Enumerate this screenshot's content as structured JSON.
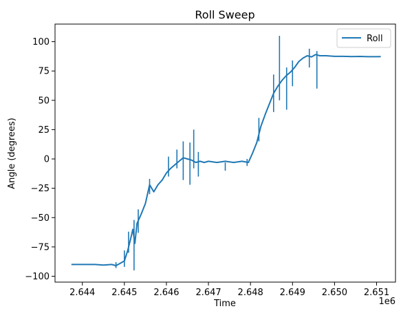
{
  "chart_data": {
    "type": "line",
    "title": "Roll Sweep",
    "xlabel": "Time",
    "ylabel": "Angle (degrees)",
    "x_offset_label": "1e6",
    "xlim": [
      2643350,
      2651450
    ],
    "ylim": [
      -105,
      115
    ],
    "xticks": [
      2644000,
      2645000,
      2646000,
      2647000,
      2648000,
      2649000,
      2650000,
      2651000
    ],
    "xtick_labels": [
      "2.644",
      "2.645",
      "2.646",
      "2.647",
      "2.648",
      "2.649",
      "2.650",
      "2.651"
    ],
    "yticks": [
      -100,
      -75,
      -50,
      -25,
      0,
      25,
      50,
      75,
      100
    ],
    "ytick_labels": [
      "−100",
      "−75",
      "−50",
      "−25",
      "0",
      "25",
      "50",
      "75",
      "100"
    ],
    "legend": {
      "position": "upper right",
      "entries": [
        "Roll"
      ]
    },
    "grid": false,
    "series": [
      {
        "name": "Roll",
        "color": "#1f77b4",
        "points": [
          [
            2643740,
            -90
          ],
          [
            2644000,
            -90
          ],
          [
            2644300,
            -90
          ],
          [
            2644500,
            -90.5
          ],
          [
            2644700,
            -90
          ],
          [
            2644800,
            -91
          ],
          [
            2644900,
            -89
          ],
          [
            2645000,
            -87
          ],
          [
            2645080,
            -78
          ],
          [
            2645150,
            -68
          ],
          [
            2645200,
            -60
          ],
          [
            2645250,
            -72
          ],
          [
            2645300,
            -55
          ],
          [
            2645400,
            -47
          ],
          [
            2645500,
            -38
          ],
          [
            2645600,
            -22
          ],
          [
            2645700,
            -28
          ],
          [
            2645800,
            -22
          ],
          [
            2645900,
            -18
          ],
          [
            2646000,
            -12
          ],
          [
            2646100,
            -8
          ],
          [
            2646200,
            -5
          ],
          [
            2646300,
            -2
          ],
          [
            2646400,
            1
          ],
          [
            2646500,
            0
          ],
          [
            2646600,
            -1
          ],
          [
            2646700,
            -3
          ],
          [
            2646800,
            -2
          ],
          [
            2646900,
            -3
          ],
          [
            2647000,
            -2
          ],
          [
            2647200,
            -3
          ],
          [
            2647400,
            -2
          ],
          [
            2647600,
            -3
          ],
          [
            2647800,
            -2
          ],
          [
            2647950,
            -3
          ],
          [
            2648050,
            5
          ],
          [
            2648150,
            14
          ],
          [
            2648250,
            28
          ],
          [
            2648350,
            38
          ],
          [
            2648450,
            47
          ],
          [
            2648550,
            56
          ],
          [
            2648650,
            62
          ],
          [
            2648750,
            67
          ],
          [
            2648850,
            71
          ],
          [
            2648950,
            74
          ],
          [
            2649050,
            78
          ],
          [
            2649150,
            83
          ],
          [
            2649250,
            86
          ],
          [
            2649350,
            88
          ],
          [
            2649450,
            87
          ],
          [
            2649550,
            89
          ],
          [
            2649650,
            88
          ],
          [
            2649800,
            88
          ],
          [
            2650000,
            87.5
          ],
          [
            2650200,
            87.5
          ],
          [
            2650400,
            87.3
          ],
          [
            2650600,
            87.4
          ],
          [
            2650800,
            87.2
          ],
          [
            2651000,
            87.2
          ],
          [
            2651100,
            87.3
          ]
        ],
        "spikes": [
          [
            2644800,
            -88,
            -93
          ],
          [
            2645000,
            -92,
            -78
          ],
          [
            2645100,
            -80,
            -62
          ],
          [
            2645230,
            -95,
            -52
          ],
          [
            2645330,
            -63,
            -43
          ],
          [
            2645600,
            -30,
            -17
          ],
          [
            2646050,
            -15,
            2
          ],
          [
            2646250,
            -8,
            8
          ],
          [
            2646400,
            -18,
            15
          ],
          [
            2646560,
            -22,
            14
          ],
          [
            2646650,
            -8,
            25
          ],
          [
            2646760,
            -15,
            6
          ],
          [
            2647400,
            -3,
            -10
          ],
          [
            2647920,
            -6,
            0
          ],
          [
            2648200,
            15,
            35
          ],
          [
            2648550,
            40,
            72
          ],
          [
            2648690,
            50,
            105
          ],
          [
            2648860,
            42,
            78
          ],
          [
            2649000,
            62,
            84
          ],
          [
            2649400,
            78,
            94
          ],
          [
            2649580,
            60,
            92
          ]
        ]
      }
    ]
  }
}
